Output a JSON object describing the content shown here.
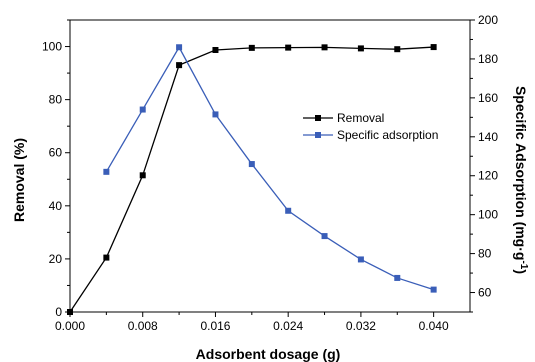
{
  "chart_data": {
    "type": "line",
    "title": "",
    "xlabel": "Adsorbent dosage (g)",
    "ylabel_left": "Removal (%)",
    "ylabel_right_main": "Specific Adsorption (mg·g",
    "ylabel_right_sup": "-1",
    "ylabel_right_close": ")",
    "xlim": [
      0.0,
      0.044
    ],
    "ylim_left": [
      0,
      110
    ],
    "ylim_right": [
      50,
      200
    ],
    "x_ticks": [
      "0.000",
      "0.008",
      "0.016",
      "0.024",
      "0.032",
      "0.040"
    ],
    "y_left_ticks": [
      "0",
      "20",
      "40",
      "60",
      "80",
      "100"
    ],
    "y_right_ticks": [
      "60",
      "80",
      "100",
      "120",
      "140",
      "160",
      "180",
      "200"
    ],
    "grid": false,
    "legend_position": "center-right",
    "series": [
      {
        "name": "Removal",
        "axis": "left",
        "color": "#000000",
        "marker": "square",
        "x": [
          0.0,
          0.004,
          0.008,
          0.012,
          0.016,
          0.02,
          0.024,
          0.028,
          0.032,
          0.036,
          0.04
        ],
        "y": [
          0,
          20.5,
          51.5,
          93,
          98.7,
          99.5,
          99.6,
          99.7,
          99.3,
          99.0,
          99.8
        ]
      },
      {
        "name": "Specific adsorption",
        "axis": "right",
        "color": "#3a5eb8",
        "marker": "square",
        "x": [
          0.004,
          0.008,
          0.012,
          0.016,
          0.02,
          0.024,
          0.028,
          0.032,
          0.036,
          0.04
        ],
        "y": [
          122,
          154,
          186,
          151.5,
          126,
          102,
          89,
          77,
          67.5,
          61.5
        ]
      }
    ]
  }
}
